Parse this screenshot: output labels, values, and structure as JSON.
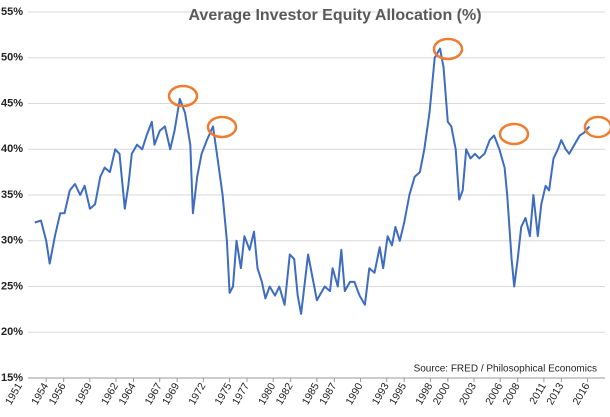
{
  "chart_data": {
    "type": "line",
    "title": "Average Investor Equity Allocation (%)",
    "annotation": "Source: FRED / Philosophical Economics",
    "x": [
      1952.7,
      1953.4,
      1954.0,
      1954.4,
      1955.0,
      1955.6,
      1956.1,
      1956.7,
      1957.3,
      1957.9,
      1958.4,
      1959.0,
      1959.6,
      1960.2,
      1960.7,
      1961.3,
      1961.9,
      1962.4,
      1963.0,
      1963.4,
      1963.8,
      1964.4,
      1965.0,
      1965.5,
      1966.1,
      1966.4,
      1967.0,
      1967.6,
      1968.2,
      1968.7,
      1969.3,
      1969.9,
      1970.5,
      1970.8,
      1971.3,
      1971.8,
      1972.4,
      1973.1,
      1973.7,
      1974.2,
      1974.7,
      1975.0,
      1975.4,
      1975.8,
      1976.3,
      1976.7,
      1977.3,
      1977.8,
      1978.2,
      1978.7,
      1979.1,
      1979.6,
      1980.2,
      1980.7,
      1981.3,
      1981.9,
      1982.4,
      1982.8,
      1983.2,
      1983.5,
      1984.0,
      1984.5,
      1985.0,
      1985.3,
      1985.9,
      1986.5,
      1986.8,
      1987.4,
      1987.8,
      1988.2,
      1988.8,
      1989.3,
      1989.9,
      1990.5,
      1991.0,
      1991.6,
      1992.2,
      1992.6,
      1993.1,
      1993.6,
      1994.0,
      1994.5,
      1995.0,
      1995.6,
      1996.2,
      1996.8,
      1997.3,
      1997.9,
      1998.5,
      1999.1,
      1999.5,
      2000.0,
      2000.4,
      2000.9,
      2001.3,
      2001.7,
      2002.1,
      2002.6,
      2003.1,
      2003.6,
      2004.2,
      2004.8,
      2005.3,
      2005.9,
      2006.5,
      2006.8,
      2007.3,
      2007.6,
      2008.0,
      2008.4,
      2008.9,
      2009.4,
      2009.8,
      2010.3,
      2010.7,
      2011.2,
      2011.6,
      2012.1,
      2012.6,
      2013.0,
      2013.5,
      2013.9,
      2014.5,
      2015.1,
      2015.6,
      2016.2
    ],
    "series": [
      {
        "name": "Average Investor Equity Allocation",
        "color": "#3d6cc0",
        "values": [
          32,
          32.2,
          30,
          27.5,
          30.5,
          33,
          33,
          35.5,
          36.2,
          35,
          36,
          33.5,
          34,
          37,
          38,
          37.5,
          40,
          39.5,
          33.5,
          36,
          39.5,
          40.5,
          40,
          41.5,
          43,
          40.5,
          42,
          42.5,
          40,
          42,
          45.5,
          44,
          40.5,
          33,
          37,
          39.5,
          41,
          42.5,
          38.5,
          35,
          30,
          24.3,
          25,
          30,
          27,
          30.5,
          29,
          31,
          27,
          25.5,
          23.7,
          25,
          24,
          25,
          23,
          28.5,
          28,
          24,
          22,
          24.5,
          28.5,
          26,
          23.5,
          24,
          25,
          24.5,
          27,
          25,
          29,
          24.5,
          25.5,
          25.5,
          24,
          23,
          27,
          26.5,
          29.3,
          27,
          30.5,
          29.5,
          31.5,
          30,
          32,
          35,
          37,
          37.5,
          40,
          44,
          50,
          51,
          49,
          43,
          42.5,
          40,
          34.5,
          35.5,
          40,
          39,
          39.5,
          39,
          39.5,
          41,
          41.5,
          40,
          38,
          35,
          28,
          25,
          28,
          31.5,
          32.5,
          30.5,
          35,
          30.5,
          34,
          36,
          35.5,
          39,
          40,
          41,
          40,
          39.5,
          40.5,
          41.5,
          41.8,
          42.5
        ]
      }
    ],
    "xlim": [
      1951,
      2018
    ],
    "xticks": [
      1951,
      1954,
      1956,
      1959,
      1962,
      1964,
      1967,
      1969,
      1972,
      1975,
      1977,
      1980,
      1982,
      1985,
      1987,
      1990,
      1993,
      1995,
      1998,
      2000,
      2003,
      2006,
      2008,
      2011,
      2013,
      2016
    ],
    "ylim": [
      15,
      55
    ],
    "yticks": [
      {
        "value": 15,
        "label": "15%"
      },
      {
        "value": 20,
        "label": "20%"
      },
      {
        "value": 25,
        "label": "25%"
      },
      {
        "value": 30,
        "label": "30%"
      },
      {
        "value": 35,
        "label": "35%"
      },
      {
        "value": 40,
        "label": "40%"
      },
      {
        "value": 45,
        "label": "45%"
      },
      {
        "value": 50,
        "label": "50%"
      },
      {
        "value": 55,
        "label": "55%"
      }
    ],
    "grid": true
  }
}
